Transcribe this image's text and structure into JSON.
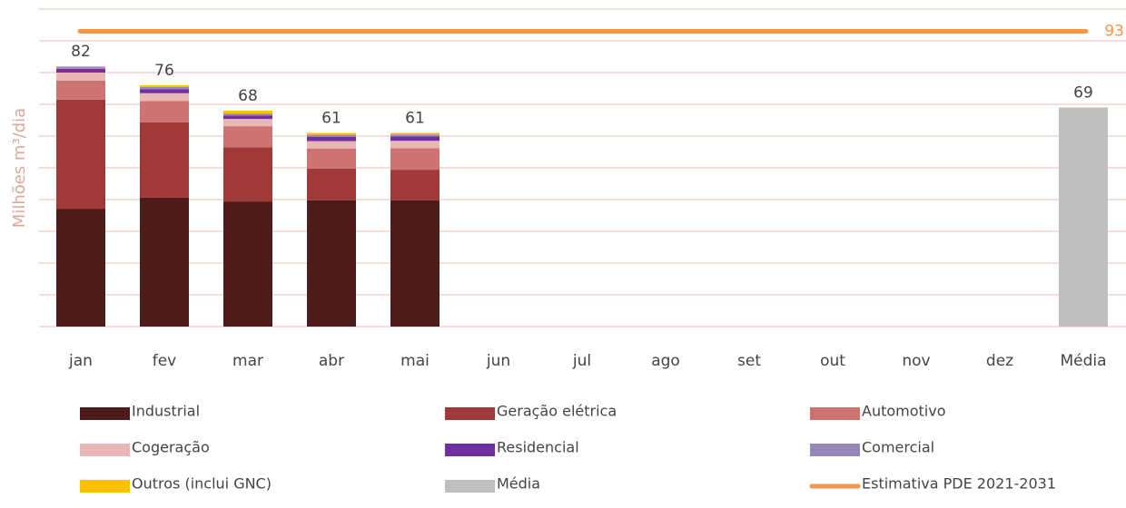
{
  "chart_data": {
    "type": "stacked_bar",
    "y_label": "Milhões m³/dia",
    "categories": [
      "jan",
      "fev",
      "mar",
      "abr",
      "mai",
      "jun",
      "jul",
      "ago",
      "set",
      "out",
      "nov",
      "dez",
      "Média"
    ],
    "series": [
      {
        "name": "Industrial",
        "color": "#4e1b1b",
        "values": [
          37,
          40.6,
          39.4,
          39.8,
          39.8,
          null,
          null,
          null,
          null,
          null,
          null,
          null,
          null
        ]
      },
      {
        "name": "Geração elétrica",
        "color": "#a03a3a",
        "values": [
          34.5,
          23.7,
          17.1,
          10,
          9.6,
          null,
          null,
          null,
          null,
          null,
          null,
          null,
          null
        ]
      },
      {
        "name": "Automotivo",
        "color": "#cd7472",
        "values": [
          6,
          6.7,
          6.6,
          6.3,
          6.8,
          null,
          null,
          null,
          null,
          null,
          null,
          null,
          null
        ]
      },
      {
        "name": "Cogeração",
        "color": "#e9b8b6",
        "values": [
          2.5,
          2.5,
          2.3,
          2.3,
          2.3,
          null,
          null,
          null,
          null,
          null,
          null,
          null,
          null
        ]
      },
      {
        "name": "Residencial",
        "color": "#7030a0",
        "values": [
          1.2,
          1.3,
          1.1,
          1.4,
          1.4,
          null,
          null,
          null,
          null,
          null,
          null,
          null,
          null
        ]
      },
      {
        "name": "Comercial",
        "color": "#9a87b9",
        "values": [
          0.5,
          0.7,
          0.6,
          0.6,
          0.6,
          null,
          null,
          null,
          null,
          null,
          null,
          null,
          null
        ]
      },
      {
        "name": "Outros (inclui GNC)",
        "color": "#ffc000",
        "values": [
          0.3,
          0.5,
          0.9,
          0.6,
          0.5,
          null,
          null,
          null,
          null,
          null,
          null,
          null,
          null
        ]
      },
      {
        "name": "Média",
        "color": "#bfbfbf",
        "values": [
          null,
          null,
          null,
          null,
          null,
          null,
          null,
          null,
          null,
          null,
          null,
          null,
          69
        ]
      }
    ],
    "totals": [
      82,
      76,
      68,
      61,
      61,
      null,
      null,
      null,
      null,
      null,
      null,
      null,
      69
    ],
    "reference_line": {
      "name": "Estimativa PDE 2021-2031",
      "value": 93,
      "color": "#f4964a"
    },
    "ylim": [
      0,
      100
    ],
    "yticks": [
      0,
      10,
      20,
      30,
      40,
      50,
      60,
      70,
      80,
      90,
      100
    ],
    "grid": true
  }
}
